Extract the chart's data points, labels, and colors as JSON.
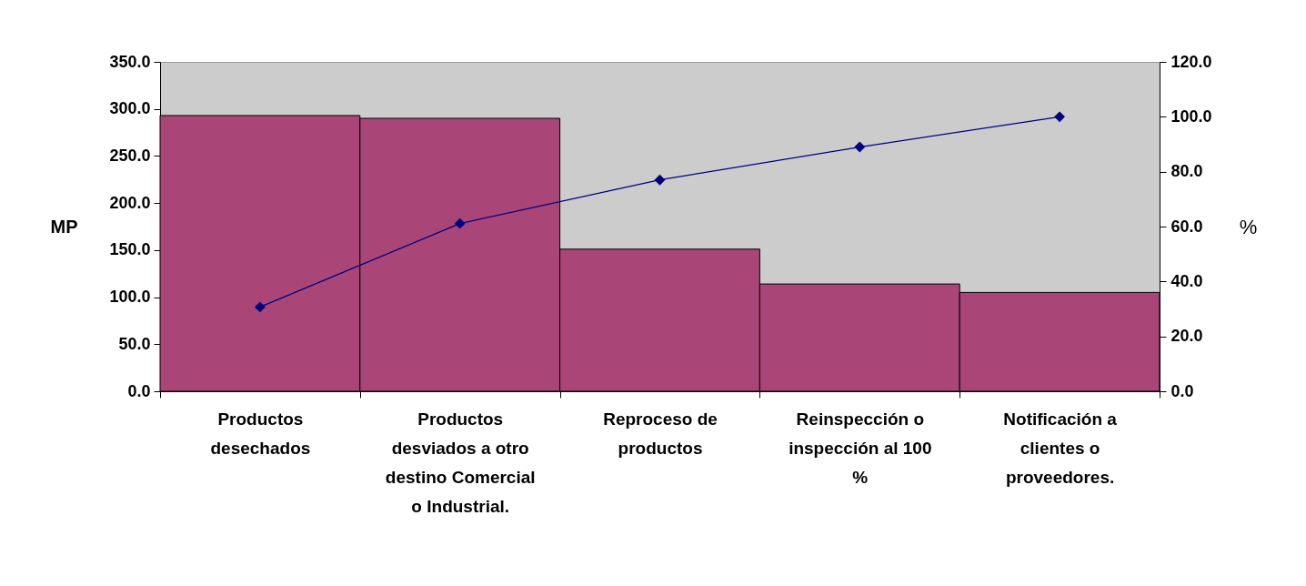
{
  "chart_data": {
    "type": "bar",
    "ylabel": "MP",
    "y2label": "%",
    "categories": [
      "Productos desechados",
      "Productos desviados a otro destino Comercial o Industrial.",
      "Reproceso de productos",
      "Reinspección o inspección al 100 %",
      "Notificación a clientes o proveedores."
    ],
    "series": [
      {
        "color": "#aa4677",
        "values": [
          293,
          290,
          151,
          114,
          105
        ]
      },
      {
        "type": "line",
        "axis": "y2",
        "color": "#000080",
        "marker": "diamond",
        "line_style": "solid",
        "values": [
          30.7,
          61.1,
          77.0,
          89.0,
          100.0
        ]
      }
    ],
    "ylim": [
      0,
      350
    ],
    "yticks": [
      {
        "value": 0,
        "label": "0.0"
      },
      {
        "value": 50,
        "label": "50.0"
      },
      {
        "value": 100,
        "label": "100.0"
      },
      {
        "value": 150,
        "label": "150.0"
      },
      {
        "value": 200,
        "label": "200.0"
      },
      {
        "value": 250,
        "label": "250.0"
      },
      {
        "value": 300,
        "label": "300.0"
      },
      {
        "value": 350,
        "label": "350.0"
      }
    ],
    "y2lim": [
      0,
      120
    ],
    "y2ticks": [
      {
        "value": 0,
        "label": "0.0"
      },
      {
        "value": 20,
        "label": "20.0"
      },
      {
        "value": 40,
        "label": "40.0"
      },
      {
        "value": 60,
        "label": "60.0"
      },
      {
        "value": 80,
        "label": "80.0"
      },
      {
        "value": 100,
        "label": "100.0"
      },
      {
        "value": 120,
        "label": "120.0"
      }
    ],
    "grid": false
  }
}
